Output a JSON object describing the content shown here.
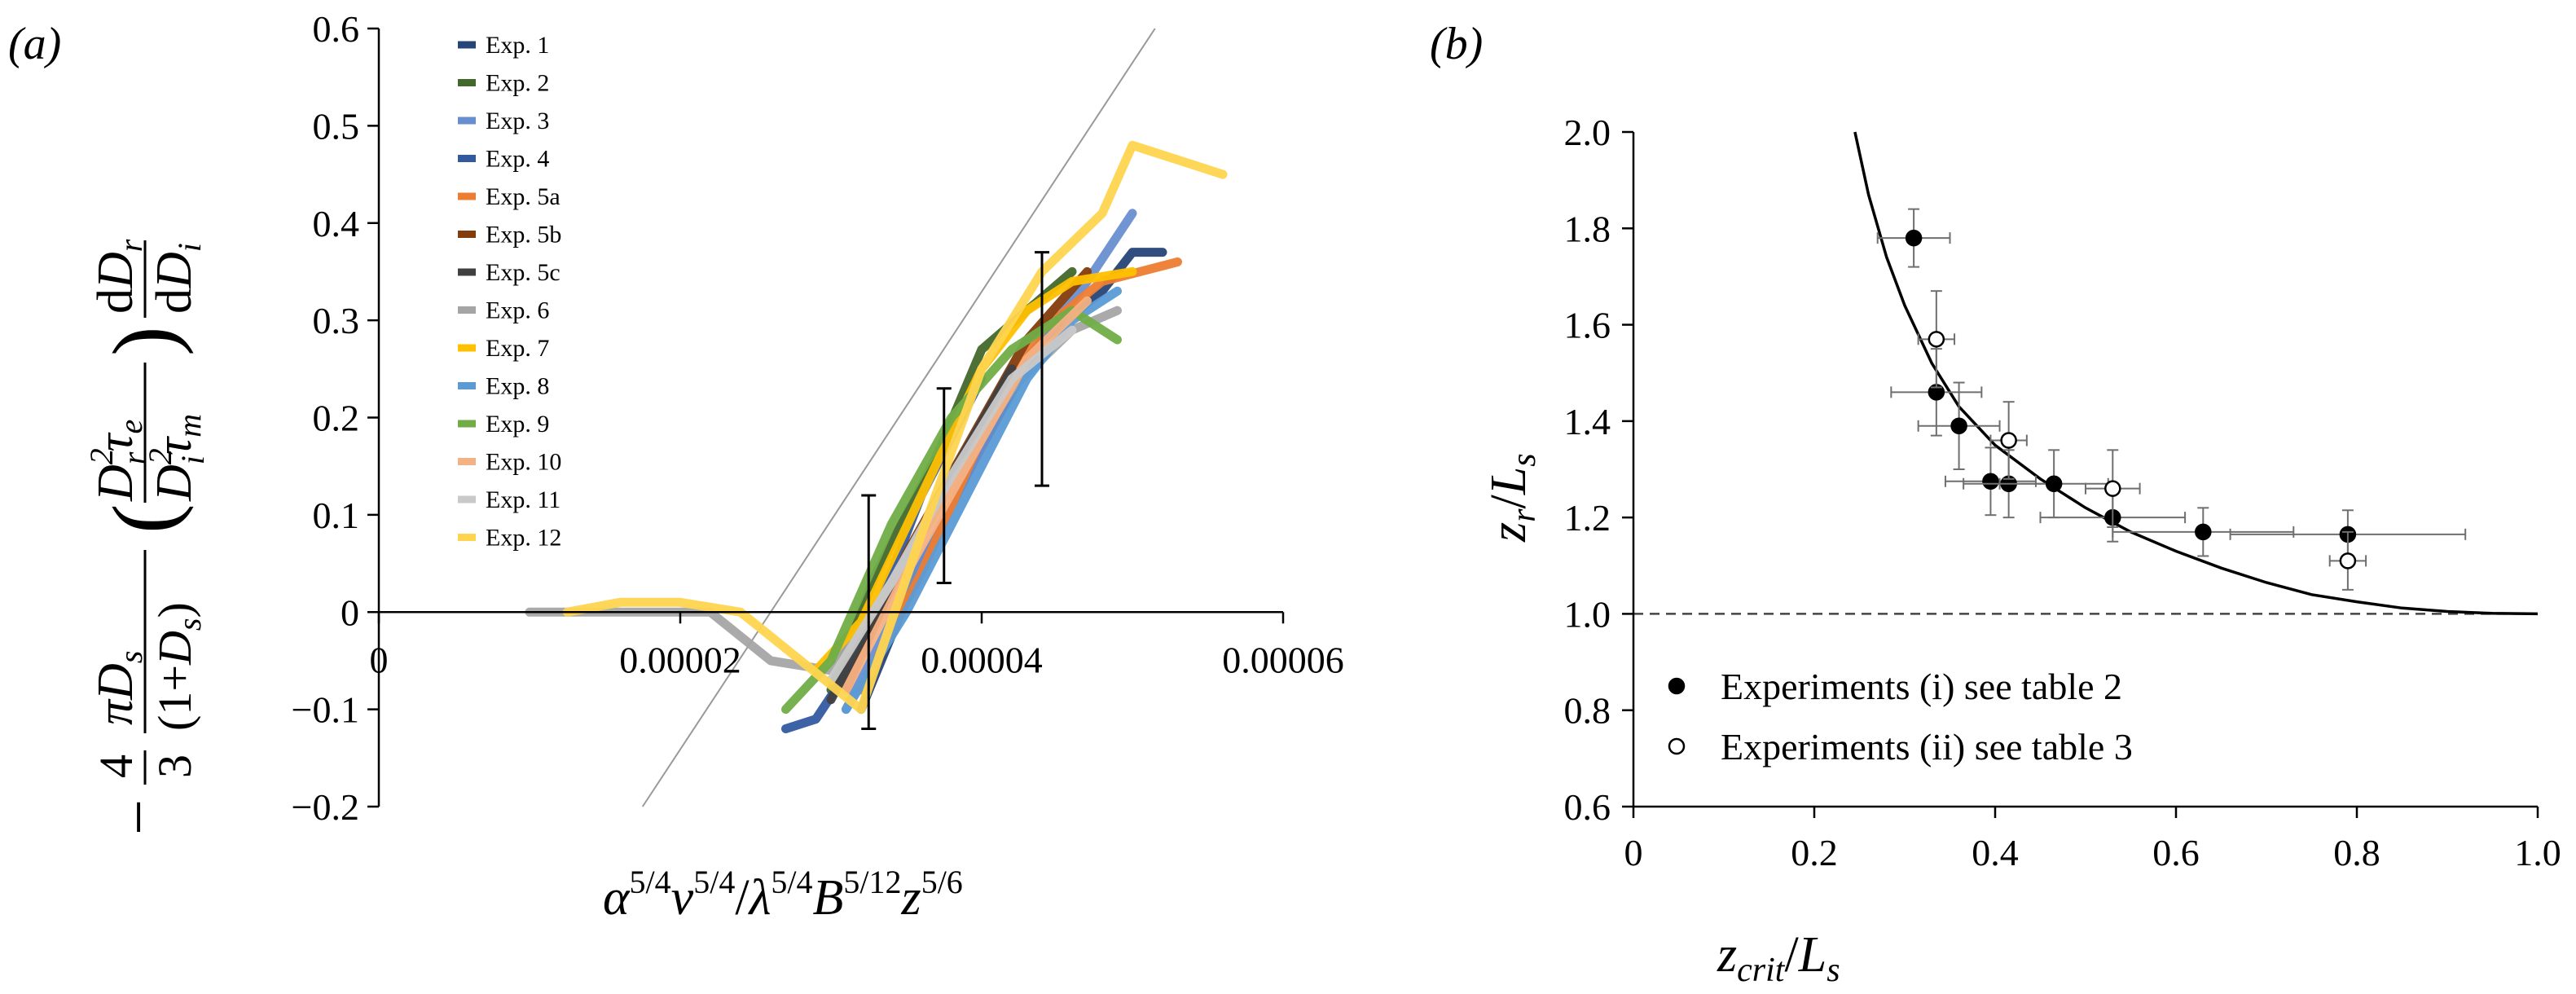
{
  "panels": {
    "a": {
      "label": "(a)"
    },
    "b": {
      "label": "(b)"
    }
  },
  "chart_data": [
    {
      "type": "line",
      "panel": "(a)",
      "xlim": [
        0,
        6e-05
      ],
      "ylim": [
        -0.2,
        0.6
      ],
      "x_ticks": [
        0,
        2e-05,
        4e-05,
        6e-05
      ],
      "x_tick_labels": [
        "0",
        "0.00002",
        "0.00004",
        "0.00006"
      ],
      "y_ticks": [
        -0.2,
        -0.1,
        0,
        0.1,
        0.2,
        0.3,
        0.4,
        0.5,
        0.6
      ],
      "y_tick_labels": [
        "−0.2",
        "−0.1",
        "0",
        "0.1",
        "0.2",
        "0.3",
        "0.4",
        "0.5",
        "0.6"
      ],
      "xlabel": "α^{5/4}ν^{5/4}/λ^{5/4}B^{5/12}z^{5/6}",
      "ylabel": "−(4/3)(πD_s/(1+D_s))(D_r^2τ_e/D_i^2τ_m)(dD_r/dD_i)",
      "legend_position": "upper-left",
      "grid": false,
      "reference_line": {
        "x": [
          1.75e-05,
          5.15e-05
        ],
        "y": [
          -0.2,
          0.6
        ]
      },
      "error_bars": [
        {
          "x": 3.25e-05,
          "y_low": -0.12,
          "y_high": 0.12
        },
        {
          "x": 3.75e-05,
          "y_low": 0.03,
          "y_high": 0.23
        },
        {
          "x": 4.4e-05,
          "y_low": 0.13,
          "y_high": 0.37
        }
      ],
      "series": [
        {
          "name": "Exp. 1",
          "color": "#264478",
          "x": [
            3.2e-05,
            3.6e-05,
            4e-05,
            4.4e-05,
            4.8e-05,
            5e-05,
            5.2e-05
          ],
          "y": [
            -0.1,
            0.05,
            0.17,
            0.28,
            0.33,
            0.37,
            0.37
          ]
        },
        {
          "name": "Exp. 2",
          "color": "#43682B",
          "x": [
            3e-05,
            3.3e-05,
            3.7e-05,
            4e-05,
            4.3e-05,
            4.6e-05
          ],
          "y": [
            -0.08,
            0.04,
            0.16,
            0.27,
            0.31,
            0.35
          ]
        },
        {
          "name": "Exp. 3",
          "color": "#698ED0",
          "x": [
            3.1e-05,
            3.5e-05,
            3.9e-05,
            4.3e-05,
            4.7e-05,
            5e-05
          ],
          "y": [
            -0.1,
            0.02,
            0.14,
            0.26,
            0.34,
            0.41
          ]
        },
        {
          "name": "Exp. 4",
          "color": "#335AA1",
          "x": [
            2.7e-05,
            2.9e-05,
            3.2e-05,
            3.6e-05,
            4e-05
          ],
          "y": [
            -0.12,
            -0.11,
            -0.04,
            0.12,
            0.24
          ]
        },
        {
          "name": "Exp. 5a",
          "color": "#ED7D31",
          "x": [
            3.2e-05,
            3.6e-05,
            4e-05,
            4.4e-05,
            4.8e-05,
            5.3e-05
          ],
          "y": [
            -0.08,
            0.04,
            0.18,
            0.29,
            0.34,
            0.36
          ]
        },
        {
          "name": "Exp. 5b",
          "color": "#843C0C",
          "x": [
            3.1e-05,
            3.5e-05,
            3.9e-05,
            4.3e-05,
            4.7e-05
          ],
          "y": [
            -0.08,
            0.06,
            0.17,
            0.28,
            0.35
          ]
        },
        {
          "name": "Exp. 5c",
          "color": "#404040",
          "x": [
            3e-05,
            3.4e-05,
            3.8e-05,
            4.2e-05
          ],
          "y": [
            -0.09,
            0.03,
            0.14,
            0.25
          ]
        },
        {
          "name": "Exp. 6",
          "color": "#A5A5A5",
          "x": [
            1e-05,
            1.4e-05,
            1.8e-05,
            2.2e-05,
            2.6e-05,
            3e-05,
            3.4e-05,
            3.8e-05,
            4.2e-05,
            4.6e-05,
            4.9e-05
          ],
          "y": [
            0,
            0,
            0,
            0,
            -0.05,
            -0.06,
            0.03,
            0.13,
            0.23,
            0.29,
            0.31
          ]
        },
        {
          "name": "Exp. 7",
          "color": "#FFC000",
          "x": [
            2.9e-05,
            3.2e-05,
            3.6e-05,
            4e-05,
            4.3e-05,
            4.6e-05,
            5e-05
          ],
          "y": [
            -0.06,
            -0.01,
            0.12,
            0.25,
            0.31,
            0.34,
            0.35
          ]
        },
        {
          "name": "Exp. 8",
          "color": "#5B9BD5",
          "x": [
            3.1e-05,
            3.5e-05,
            3.9e-05,
            4.3e-05,
            4.6e-05,
            4.9e-05
          ],
          "y": [
            -0.1,
            0,
            0.12,
            0.24,
            0.3,
            0.33
          ]
        },
        {
          "name": "Exp. 9",
          "color": "#70AD47",
          "x": [
            2.7e-05,
            3e-05,
            3.4e-05,
            3.8e-05,
            4.2e-05,
            4.6e-05,
            4.9e-05
          ],
          "y": [
            -0.1,
            -0.05,
            0.09,
            0.2,
            0.27,
            0.31,
            0.28
          ]
        },
        {
          "name": "Exp. 10",
          "color": "#F4B183",
          "x": [
            3.1e-05,
            3.5e-05,
            3.9e-05,
            4.3e-05,
            4.7e-05
          ],
          "y": [
            -0.08,
            0.04,
            0.15,
            0.26,
            0.32
          ]
        },
        {
          "name": "Exp. 11",
          "color": "#C9C9C9",
          "x": [
            3e-05,
            3.4e-05,
            3.8e-05,
            4.2e-05,
            4.6e-05
          ],
          "y": [
            -0.07,
            0.03,
            0.14,
            0.24,
            0.29
          ]
        },
        {
          "name": "Exp. 12",
          "color": "#FFD54F",
          "x": [
            1.25e-05,
            1.6e-05,
            2e-05,
            2.4e-05,
            2.8e-05,
            3.2e-05,
            3.6e-05,
            4e-05,
            4.4e-05,
            4.8e-05,
            5e-05,
            5.4e-05,
            5.6e-05
          ],
          "y": [
            0,
            0.01,
            0.01,
            0,
            -0.05,
            -0.1,
            0.08,
            0.25,
            0.35,
            0.41,
            0.48,
            0.46,
            0.45
          ]
        }
      ]
    },
    {
      "type": "scatter",
      "panel": "(b)",
      "xlim": [
        0,
        1.0
      ],
      "ylim": [
        0.6,
        2.0
      ],
      "x_ticks": [
        0,
        0.2,
        0.4,
        0.6,
        0.8,
        1.0
      ],
      "x_tick_labels": [
        "0",
        "0.2",
        "0.4",
        "0.6",
        "0.8",
        "1.0"
      ],
      "y_ticks": [
        0.6,
        0.8,
        1.0,
        1.2,
        1.4,
        1.6,
        1.8,
        2.0
      ],
      "y_tick_labels": [
        "0.6",
        "0.8",
        "1.0",
        "1.2",
        "1.4",
        "1.6",
        "1.8",
        "2.0"
      ],
      "xlabel": "z_crit/L_s",
      "ylabel": "z_r/L_s",
      "legend_position": "lower-left",
      "grid": false,
      "reference_line": {
        "y": 1.0,
        "style": "dashed"
      },
      "fit_curve": {
        "x": [
          0.245,
          0.26,
          0.28,
          0.3,
          0.33,
          0.36,
          0.4,
          0.45,
          0.5,
          0.55,
          0.6,
          0.65,
          0.7,
          0.75,
          0.8,
          0.85,
          0.9,
          0.95,
          1.0
        ],
        "y": [
          2.0,
          1.87,
          1.74,
          1.64,
          1.52,
          1.43,
          1.35,
          1.28,
          1.22,
          1.17,
          1.13,
          1.095,
          1.065,
          1.04,
          1.025,
          1.012,
          1.005,
          1.001,
          1.0
        ]
      },
      "series": [
        {
          "name": "Experiments (i) see table 2",
          "marker": "filled-circle",
          "x": [
            0.31,
            0.335,
            0.36,
            0.395,
            0.415,
            0.465,
            0.53,
            0.63,
            0.79
          ],
          "y": [
            1.78,
            1.46,
            1.39,
            1.275,
            1.27,
            1.27,
            1.2,
            1.17,
            1.165
          ],
          "x_err": [
            0.04,
            0.05,
            0.045,
            0.05,
            0.05,
            0.06,
            0.08,
            0.1,
            0.13
          ],
          "y_err": [
            0.06,
            0.09,
            0.09,
            0.07,
            0.07,
            0.07,
            0.05,
            0.05,
            0.05
          ]
        },
        {
          "name": "Experiments (ii) see table 3",
          "marker": "open-circle",
          "x": [
            0.335,
            0.415,
            0.53,
            0.79
          ],
          "y": [
            1.57,
            1.36,
            1.26,
            1.11
          ],
          "x_err": [
            0.02,
            0.02,
            0.03,
            0.02
          ],
          "y_err": [
            0.1,
            0.08,
            0.08,
            0.06
          ]
        }
      ]
    }
  ]
}
